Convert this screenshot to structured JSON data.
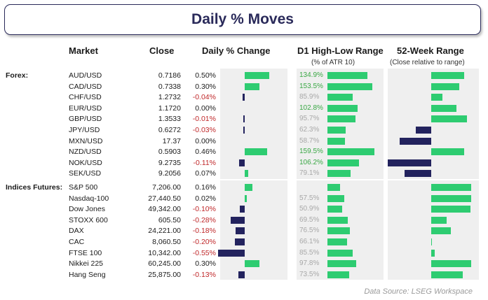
{
  "title": "Daily % Moves",
  "headers": {
    "market": "Market",
    "close": "Close",
    "daily": "Daily % Change",
    "range": "D1 High-Low Range",
    "range_sub": "(% of ATR 10)",
    "week52": "52-Week Range",
    "week52_sub": "(Close relative to range)"
  },
  "footer": "Data Source: LSEG Workspace",
  "colors": {
    "positive": "#2ecc71",
    "negative": "#23235e",
    "pos_text": "#3aa845",
    "neg_text": "#c0282a",
    "panel": "#efefef"
  },
  "chart_data": {
    "type": "table",
    "groups": [
      {
        "label": "Forex:",
        "rows": [
          {
            "market": "AUD/USD",
            "close": "0.7186",
            "change": "0.50%",
            "change_value": 0.5,
            "range": "134.9%",
            "range_value": 134.9,
            "week52": 0.75
          },
          {
            "market": "CAD/USD",
            "close": "0.7338",
            "change": "0.30%",
            "change_value": 0.3,
            "range": "153.5%",
            "range_value": 153.5,
            "week52": 0.65
          },
          {
            "market": "CHF/USD",
            "close": "1.2732",
            "change": "-0.04%",
            "change_value": -0.04,
            "range": "85.9%",
            "range_value": 85.9,
            "week52": 0.25
          },
          {
            "market": "EUR/USD",
            "close": "1.1720",
            "change": "0.00%",
            "change_value": 0.0,
            "range": "102.8%",
            "range_value": 102.8,
            "week52": 0.58
          },
          {
            "market": "GBP/USD",
            "close": "1.3533",
            "change": "-0.01%",
            "change_value": -0.01,
            "range": "95.7%",
            "range_value": 95.7,
            "week52": 0.82
          },
          {
            "market": "JPY/USD",
            "close": "0.6272",
            "change": "-0.03%",
            "change_value": -0.03,
            "range": "62.3%",
            "range_value": 62.3,
            "week52": -0.35
          },
          {
            "market": "MXN/USD",
            "close": "17.37",
            "change": "0.00%",
            "change_value": 0.0,
            "range": "58.7%",
            "range_value": 58.7,
            "week52": -0.72
          },
          {
            "market": "NZD/USD",
            "close": "0.5903",
            "change": "0.46%",
            "change_value": 0.46,
            "range": "159.5%",
            "range_value": 159.5,
            "week52": 0.75
          },
          {
            "market": "NOK/USD",
            "close": "9.2735",
            "change": "-0.11%",
            "change_value": -0.11,
            "range": "106.2%",
            "range_value": 106.2,
            "week52": -1.0
          },
          {
            "market": "SEK/USD",
            "close": "9.2056",
            "change": "0.07%",
            "change_value": 0.07,
            "range": "79.1%",
            "range_value": 79.1,
            "week52": -0.62
          }
        ]
      },
      {
        "label": "Indices Futures:",
        "rows": [
          {
            "market": "S&P 500",
            "close": "7,206.00",
            "change": "0.16%",
            "change_value": 0.16,
            "range": "",
            "range_value": 44,
            "week52": 0.92
          },
          {
            "market": "Nasdaq-100",
            "close": "27,440.50",
            "change": "0.02%",
            "change_value": 0.02,
            "range": "57.5%",
            "range_value": 57.5,
            "week52": 0.92
          },
          {
            "market": "Dow Jones",
            "close": "49,342.00",
            "change": "-0.10%",
            "change_value": -0.1,
            "range": "50.9%",
            "range_value": 50.9,
            "week52": 0.9
          },
          {
            "market": "STOXX 600",
            "close": "605.50",
            "change": "-0.28%",
            "change_value": -0.28,
            "range": "69.5%",
            "range_value": 69.5,
            "week52": 0.35
          },
          {
            "market": "DAX",
            "close": "24,221.00",
            "change": "-0.18%",
            "change_value": -0.18,
            "range": "76.5%",
            "range_value": 76.5,
            "week52": 0.45
          },
          {
            "market": "CAC",
            "close": "8,060.50",
            "change": "-0.20%",
            "change_value": -0.2,
            "range": "66.1%",
            "range_value": 66.1,
            "week52": 0.02
          },
          {
            "market": "FTSE 100",
            "close": "10,342.00",
            "change": "-0.55%",
            "change_value": -0.55,
            "range": "85.5%",
            "range_value": 85.5,
            "week52": 0.08
          },
          {
            "market": "Nikkei 225",
            "close": "60,245.00",
            "change": "0.30%",
            "change_value": 0.3,
            "range": "97.8%",
            "range_value": 97.8,
            "week52": 0.92
          },
          {
            "market": "Hang Seng",
            "close": "25,875.00",
            "change": "-0.13%",
            "change_value": -0.13,
            "range": "73.5%",
            "range_value": 73.5,
            "week52": 0.72
          }
        ]
      }
    ]
  }
}
